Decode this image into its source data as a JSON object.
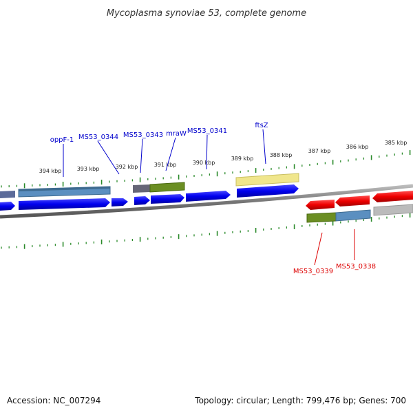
{
  "title": "Mycoplasma synoviae 53, complete genome",
  "footer": {
    "accession": "Accession: NC_007294",
    "summary": "Topology: circular; Length: 799,476 bp; Genes: 700"
  },
  "colors": {
    "forward": "#0000ee",
    "reverse": "#ee0000",
    "tick": "#2a8a2a",
    "backbone": "#888888",
    "cog_blue": "#5b8fc0",
    "cog_green": "#6b8e23",
    "cog_gray": "#777777",
    "cog_yellow": "#f0e68c",
    "cog_silver": "#bbbbbb"
  },
  "axis": {
    "labels": [
      "394 kbp",
      "393 kbp",
      "392 kbp",
      "391 kbp",
      "390 kbp",
      "389 kbp",
      "388 kbp",
      "387 kbp",
      "386 kbp",
      "385 kbp"
    ]
  },
  "genes": {
    "forward": [
      "oppF-1",
      "MS53_0344",
      "MS53_0343",
      "mraW",
      "MS53_0341",
      "ftsZ"
    ],
    "reverse": [
      "MS53_0339",
      "MS53_0338"
    ]
  }
}
